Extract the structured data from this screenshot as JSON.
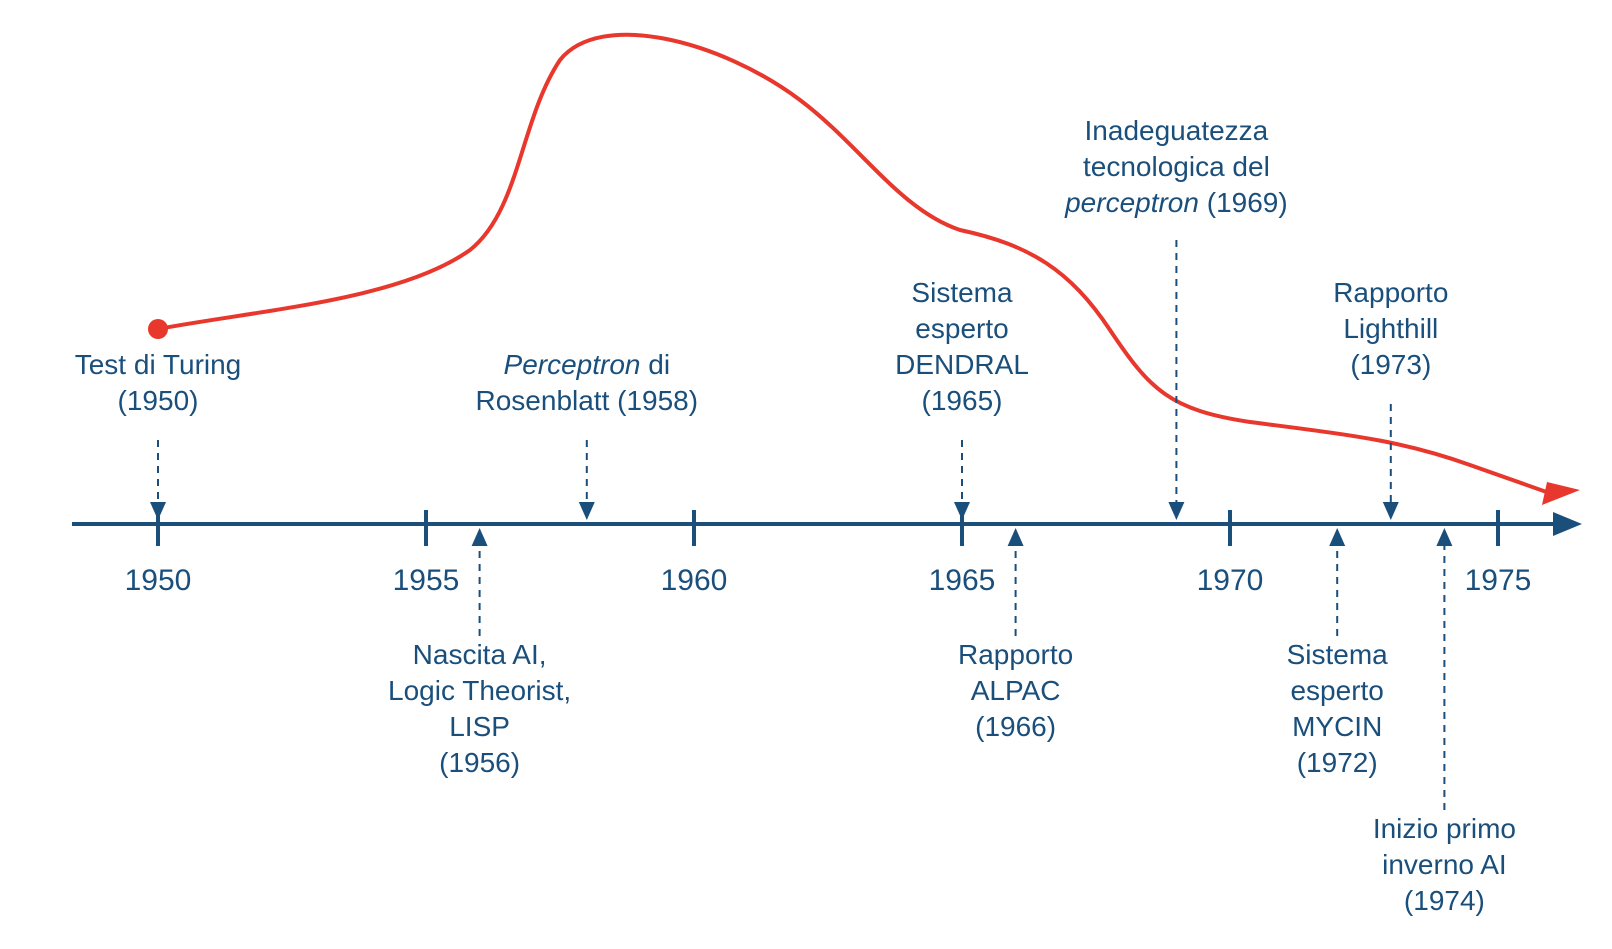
{
  "colors": {
    "axis": "#1a4f7c",
    "text": "#1a4f7c",
    "hype_curve": "#e8372c"
  },
  "axis": {
    "ticks": [
      "1950",
      "1955",
      "1960",
      "1965",
      "1970",
      "1975"
    ]
  },
  "events_above": [
    {
      "id": "turing",
      "year": 1950,
      "lines": [
        [
          "Test di Turing"
        ],
        [
          "(1950)"
        ]
      ]
    },
    {
      "id": "perceptron",
      "year": 1958,
      "lines": [
        [
          "Perceptron",
          " di"
        ],
        [
          "Rosenblatt (1958)"
        ]
      ],
      "italic_first": true
    },
    {
      "id": "dendral",
      "year": 1965,
      "lines": [
        [
          "Sistema"
        ],
        [
          "esperto"
        ],
        [
          "DENDRAL"
        ],
        [
          "(1965)"
        ]
      ]
    },
    {
      "id": "perceptron-inadequacy",
      "year": 1969,
      "lines": [
        [
          "Inadeguatezza"
        ],
        [
          "tecnologica del"
        ],
        [
          "perceptron",
          " (1969)"
        ]
      ],
      "italic_last_first": true
    },
    {
      "id": "lighthill",
      "year": 1973,
      "lines": [
        [
          "Rapporto"
        ],
        [
          "Lighthill"
        ],
        [
          "(1973)"
        ]
      ]
    }
  ],
  "events_below": [
    {
      "id": "birth-ai",
      "year": 1956,
      "lines": [
        "Nascita AI,",
        "Logic Theorist,",
        "LISP",
        "(1956)"
      ]
    },
    {
      "id": "alpac",
      "year": 1966,
      "lines": [
        "Rapporto",
        "ALPAC",
        "(1966)"
      ]
    },
    {
      "id": "mycin",
      "year": 1972,
      "lines": [
        "Sistema",
        "esperto",
        "MYCIN",
        "(1972)"
      ]
    },
    {
      "id": "first-ai-winter",
      "year": 1974,
      "lines": [
        "Inizio primo",
        "inverno AI",
        "(1974)"
      ]
    }
  ]
}
